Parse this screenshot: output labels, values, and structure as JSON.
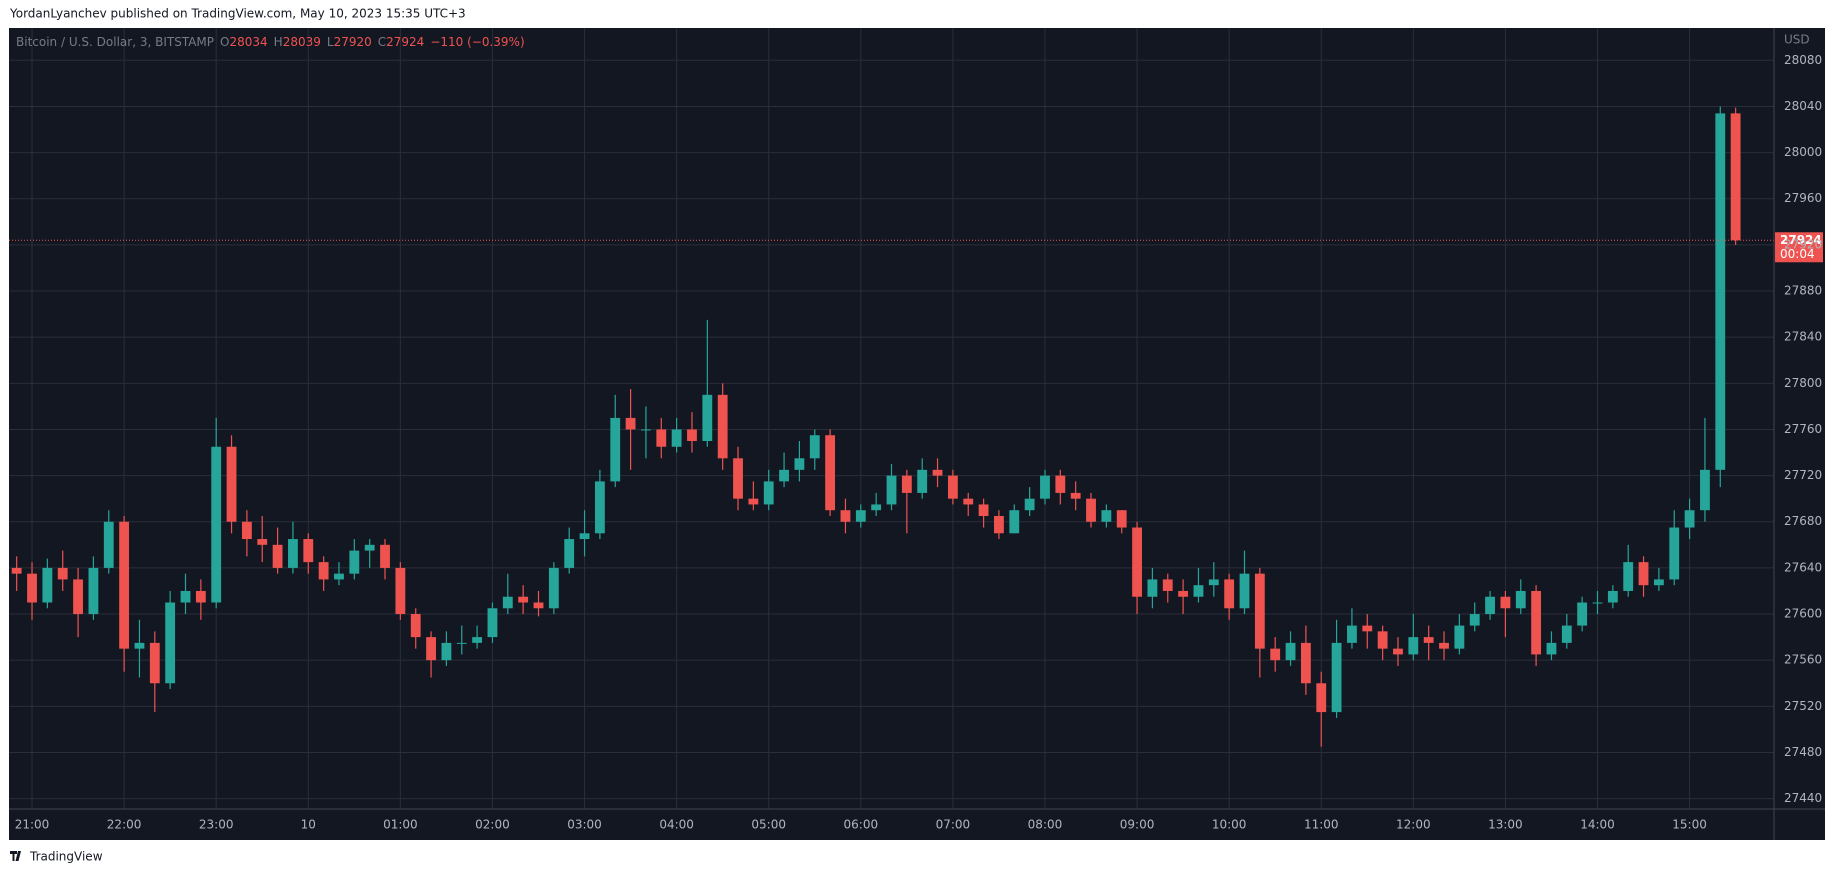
{
  "header": "YordanLyanchev published on TradingView.com, May 10, 2023 15:35 UTC+3",
  "footer": "TradingView",
  "chart_data": {
    "type": "candlestick",
    "symbol": "Bitcoin / U.S. Dollar, 3, BITSTAMP",
    "legend_labels": [
      "O",
      "H",
      "L",
      "C"
    ],
    "change_label": "−110 (−0.39%)",
    "countdown": "00:04",
    "currency": "USD",
    "up_color": "#26a69a",
    "down_color": "#ef5350",
    "grid": true,
    "categories": [
      null,
      "21:00",
      null,
      null,
      null,
      null,
      null,
      "22:00",
      null,
      null,
      null,
      null,
      null,
      "23:00",
      null,
      null,
      null,
      null,
      null,
      "10",
      null,
      null,
      null,
      null,
      null,
      "01:00",
      null,
      null,
      null,
      null,
      null,
      "02:00",
      null,
      null,
      null,
      null,
      null,
      "03:00",
      null,
      null,
      null,
      null,
      null,
      "04:00",
      null,
      null,
      null,
      null,
      null,
      "05:00",
      null,
      null,
      null,
      null,
      null,
      "06:00",
      null,
      null,
      null,
      null,
      null,
      "07:00",
      null,
      null,
      null,
      null,
      null,
      "08:00",
      null,
      null,
      null,
      null,
      null,
      "09:00",
      null,
      null,
      null,
      null,
      null,
      "10:00",
      null,
      null,
      null,
      null,
      null,
      "11:00",
      null,
      null,
      null,
      null,
      null,
      "12:00",
      null,
      null,
      null,
      null,
      null,
      "13:00",
      null,
      null,
      null,
      null,
      null,
      "14:00",
      null,
      null,
      null,
      null,
      null,
      "15:00",
      null,
      null,
      null
    ],
    "open": [
      27640,
      27635,
      27610,
      27640,
      27630,
      27600,
      27640,
      27680,
      27570,
      27575,
      27540,
      27610,
      27620,
      27610,
      27745,
      27680,
      27665,
      27660,
      27640,
      27665,
      27645,
      27630,
      27635,
      27655,
      27660,
      27640,
      27600,
      27580,
      27560,
      27575,
      27575,
      27580,
      27605,
      27615,
      27610,
      27605,
      27640,
      27665,
      27670,
      27715,
      27770,
      27760,
      27760,
      27745,
      27760,
      27750,
      27790,
      27735,
      27700,
      27695,
      27715,
      27725,
      27735,
      27755,
      27690,
      27680,
      27690,
      27695,
      27720,
      27705,
      27725,
      27720,
      27700,
      27695,
      27685,
      27670,
      27690,
      27700,
      27720,
      27705,
      27700,
      27680,
      27690,
      27675,
      27615,
      27630,
      27620,
      27615,
      27625,
      27630,
      27605,
      27635,
      27570,
      27560,
      27575,
      27540,
      27515,
      27575,
      27590,
      27585,
      27570,
      27565,
      27580,
      27575,
      27570,
      27590,
      27600,
      27615,
      27605,
      27620,
      27565,
      27575,
      27590,
      27610,
      27610,
      27620,
      27645,
      27625,
      27630,
      27675,
      27690,
      27725,
      28034
    ],
    "high": [
      27650,
      27645,
      27648,
      27655,
      27640,
      27650,
      27690,
      27685,
      27595,
      27585,
      27620,
      27635,
      27630,
      27770,
      27755,
      27690,
      27685,
      27675,
      27680,
      27670,
      27650,
      27645,
      27665,
      27665,
      27665,
      27645,
      27605,
      27585,
      27585,
      27590,
      27590,
      27610,
      27635,
      27625,
      27620,
      27645,
      27675,
      27690,
      27725,
      27790,
      27795,
      27780,
      27770,
      27770,
      27775,
      27855,
      27800,
      27745,
      27715,
      27725,
      27740,
      27750,
      27760,
      27760,
      27700,
      27695,
      27705,
      27730,
      27725,
      27735,
      27735,
      27725,
      27705,
      27700,
      27690,
      27695,
      27710,
      27725,
      27725,
      27715,
      27705,
      27695,
      27690,
      27680,
      27640,
      27635,
      27630,
      27640,
      27645,
      27635,
      27655,
      27640,
      27580,
      27585,
      27590,
      27550,
      27595,
      27605,
      27600,
      27590,
      27580,
      27600,
      27590,
      27585,
      27600,
      27610,
      27620,
      27620,
      27630,
      27625,
      27585,
      27600,
      27615,
      27620,
      27625,
      27660,
      27650,
      27640,
      27690,
      27700,
      27770,
      28040,
      28039
    ],
    "low": [
      27620,
      27595,
      27605,
      27620,
      27580,
      27595,
      27635,
      27550,
      27545,
      27515,
      27535,
      27600,
      27595,
      27605,
      27670,
      27650,
      27645,
      27635,
      27635,
      27635,
      27620,
      27625,
      27630,
      27640,
      27630,
      27595,
      27570,
      27545,
      27555,
      27565,
      27570,
      27575,
      27600,
      27600,
      27598,
      27600,
      27635,
      27650,
      27665,
      27710,
      27725,
      27735,
      27735,
      27740,
      27740,
      27745,
      27725,
      27690,
      27690,
      27690,
      27710,
      27715,
      27725,
      27685,
      27670,
      27675,
      27685,
      27690,
      27670,
      27700,
      27710,
      27695,
      27685,
      27675,
      27665,
      27670,
      27685,
      27695,
      27695,
      27690,
      27675,
      27675,
      27670,
      27600,
      27605,
      27610,
      27600,
      27610,
      27615,
      27595,
      27600,
      27545,
      27550,
      27555,
      27530,
      27485,
      27510,
      27570,
      27570,
      27560,
      27555,
      27560,
      27560,
      27560,
      27565,
      27585,
      27595,
      27580,
      27600,
      27555,
      27560,
      27570,
      27585,
      27600,
      27605,
      27615,
      27615,
      27620,
      27625,
      27665,
      27680,
      27710,
      27920
    ],
    "close": [
      27635,
      27610,
      27640,
      27630,
      27600,
      27640,
      27680,
      27570,
      27575,
      27540,
      27610,
      27620,
      27610,
      27745,
      27680,
      27665,
      27660,
      27640,
      27665,
      27645,
      27630,
      27635,
      27655,
      27660,
      27640,
      27600,
      27580,
      27560,
      27575,
      27575,
      27580,
      27605,
      27615,
      27610,
      27605,
      27640,
      27665,
      27670,
      27715,
      27770,
      27760,
      27760,
      27745,
      27760,
      27750,
      27790,
      27735,
      27700,
      27695,
      27715,
      27725,
      27735,
      27755,
      27690,
      27680,
      27690,
      27695,
      27720,
      27705,
      27725,
      27720,
      27700,
      27695,
      27685,
      27670,
      27690,
      27700,
      27720,
      27705,
      27700,
      27680,
      27690,
      27675,
      27615,
      27630,
      27620,
      27615,
      27625,
      27630,
      27605,
      27635,
      27570,
      27560,
      27575,
      27540,
      27515,
      27575,
      27590,
      27585,
      27570,
      27565,
      27580,
      27575,
      27570,
      27590,
      27600,
      27615,
      27605,
      27620,
      27565,
      27575,
      27590,
      27610,
      27610,
      27620,
      27645,
      27625,
      27630,
      27675,
      27690,
      27725,
      28034,
      27924
    ],
    "ylim": [
      27431,
      28108
    ],
    "yticks": [
      27440,
      27480,
      27520,
      27560,
      27600,
      27640,
      27680,
      27720,
      27760,
      27800,
      27840,
      27880,
      27920,
      27960,
      28000,
      28040,
      28080
    ]
  }
}
